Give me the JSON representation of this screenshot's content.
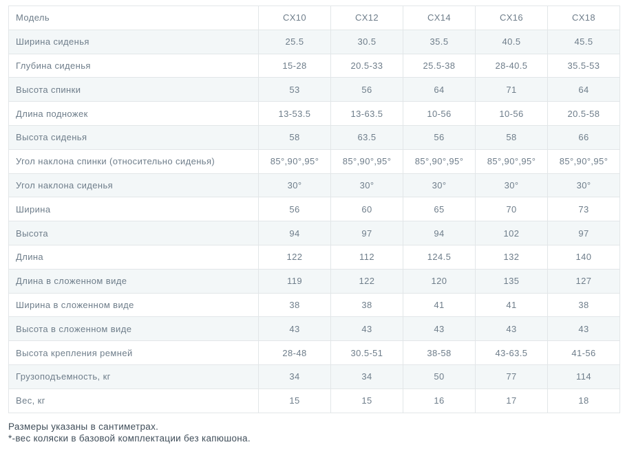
{
  "table": {
    "header": {
      "label": "Модель",
      "models": [
        "CX10",
        "CX12",
        "CX14",
        "CX16",
        "CX18"
      ]
    },
    "rows": [
      {
        "label": "Ширина сиденья",
        "values": [
          "25.5",
          "30.5",
          "35.5",
          "40.5",
          "45.5"
        ]
      },
      {
        "label": "Глубина сиденья",
        "values": [
          "15-28",
          "20.5-33",
          "25.5-38",
          "28-40.5",
          "35.5-53"
        ]
      },
      {
        "label": "Высота спинки",
        "values": [
          "53",
          "56",
          "64",
          "71",
          "64"
        ]
      },
      {
        "label": "Длина подножек",
        "values": [
          "13-53.5",
          "13-63.5",
          "10-56",
          "10-56",
          "20.5-58"
        ]
      },
      {
        "label": "Высота сиденья",
        "values": [
          "58",
          "63.5",
          "56",
          "58",
          "66"
        ]
      },
      {
        "label": "Угол наклона спинки (относительно сиденья)",
        "values": [
          "85°,90°,95°",
          "85°,90°,95°",
          "85°,90°,95°",
          "85°,90°,95°",
          "85°,90°,95°"
        ]
      },
      {
        "label": "Угол наклона сиденья",
        "values": [
          "30°",
          "30°",
          "30°",
          "30°",
          "30°"
        ]
      },
      {
        "label": "Ширина",
        "values": [
          "56",
          "60",
          "65",
          "70",
          "73"
        ]
      },
      {
        "label": "Высота",
        "values": [
          "94",
          "97",
          "94",
          "102",
          "97"
        ]
      },
      {
        "label": "Длина",
        "values": [
          "122",
          "112",
          "124.5",
          "132",
          "140"
        ]
      },
      {
        "label": "Длина в сложенном виде",
        "values": [
          "119",
          "122",
          "120",
          "135",
          "127"
        ]
      },
      {
        "label": "Ширина в сложенном виде",
        "values": [
          "38",
          "38",
          "41",
          "41",
          "38"
        ]
      },
      {
        "label": "Высота в сложенном виде",
        "values": [
          "43",
          "43",
          "43",
          "43",
          "43"
        ]
      },
      {
        "label": "Высота крепления ремней",
        "values": [
          "28-48",
          "30.5-51",
          "38-58",
          "43-63.5",
          "41-56"
        ]
      },
      {
        "label": "Грузоподъемность, кг",
        "values": [
          "34",
          "34",
          "50",
          "77",
          "114"
        ]
      },
      {
        "label": "Вес, кг",
        "values": [
          "15",
          "15",
          "16",
          "17",
          "18"
        ]
      }
    ]
  },
  "footer": {
    "notes": [
      "Размеры указаны в сантиметрах.",
      "*-вес коляски в базовой комплектации без капюшона."
    ]
  }
}
